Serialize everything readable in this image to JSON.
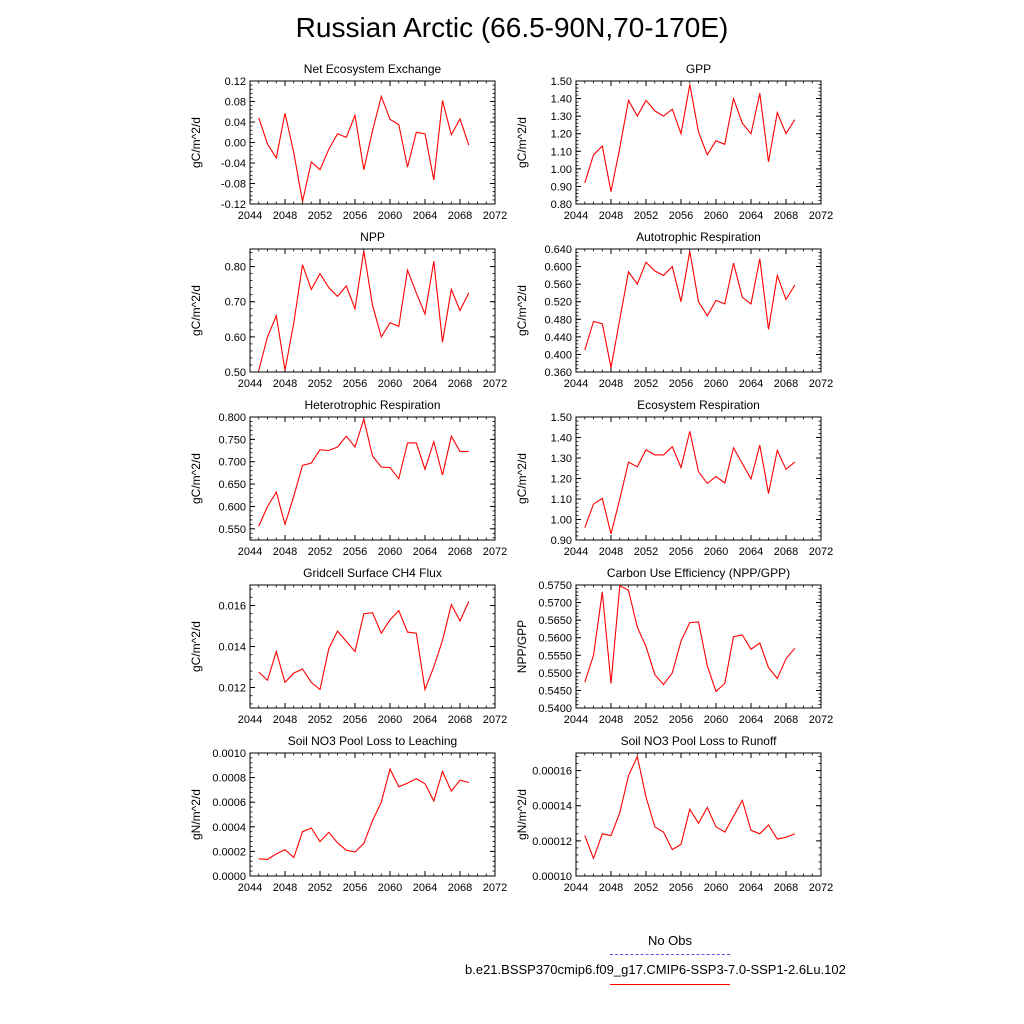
{
  "title": "Russian Arctic (66.5-90N,70-170E)",
  "legend": {
    "obs_label": "No Obs",
    "obs_color": "#5555ee",
    "model_label": "b.e21.BSSP370cmip6.f09_g17.CMIP6-SSP3-7.0-SSP1-2.6Lu.102",
    "model_color": "#ff0000"
  },
  "chart_data": [
    {
      "type": "line",
      "title": "Net Ecosystem Exchange",
      "ylabel": "gC/m^2/d",
      "xlim": [
        2044,
        2072
      ],
      "xticks": [
        2044,
        2048,
        2052,
        2056,
        2060,
        2064,
        2068,
        2072
      ],
      "xtick_labels": [
        "2044",
        "2048",
        "2052",
        "2056",
        "2060",
        "2064",
        "2068",
        "2072"
      ],
      "ylim": [
        -0.12,
        0.12
      ],
      "yticks": [
        -0.12,
        -0.08,
        -0.04,
        0.0,
        0.04,
        0.08,
        0.12
      ],
      "ytick_labels": [
        "-0.12",
        "-0.08",
        "-0.04",
        "0.00",
        "0.04",
        "0.08",
        "0.12"
      ],
      "x": [
        2045,
        2046,
        2047,
        2048,
        2049,
        2050,
        2051,
        2052,
        2053,
        2054,
        2055,
        2056,
        2057,
        2058,
        2059,
        2060,
        2061,
        2062,
        2063,
        2064,
        2065,
        2066,
        2067,
        2068,
        2069
      ],
      "series": [
        {
          "values": [
            0.048,
            -0.003,
            -0.03,
            0.057,
            -0.02,
            -0.115,
            -0.038,
            -0.053,
            -0.013,
            0.017,
            0.01,
            0.053,
            -0.053,
            0.023,
            0.09,
            0.045,
            0.035,
            -0.048,
            0.02,
            0.017,
            -0.073,
            0.082,
            0.015,
            0.046,
            -0.005
          ],
          "color": "#ff0000"
        }
      ]
    },
    {
      "type": "line",
      "title": "GPP",
      "ylabel": "gC/m^2/d",
      "xlim": [
        2044,
        2072
      ],
      "xticks": [
        2044,
        2048,
        2052,
        2056,
        2060,
        2064,
        2068,
        2072
      ],
      "xtick_labels": [
        "2044",
        "2048",
        "2052",
        "2056",
        "2060",
        "2064",
        "2068",
        "2072"
      ],
      "ylim": [
        0.8,
        1.5
      ],
      "yticks": [
        0.8,
        0.9,
        1.0,
        1.1,
        1.2,
        1.3,
        1.4,
        1.5
      ],
      "ytick_labels": [
        "0.80",
        "0.90",
        "1.00",
        "1.10",
        "1.20",
        "1.30",
        "1.40",
        "1.50"
      ],
      "x": [
        2045,
        2046,
        2047,
        2048,
        2049,
        2050,
        2051,
        2052,
        2053,
        2054,
        2055,
        2056,
        2057,
        2058,
        2059,
        2060,
        2061,
        2062,
        2063,
        2064,
        2065,
        2066,
        2067,
        2068,
        2069
      ],
      "series": [
        {
          "values": [
            0.92,
            1.08,
            1.13,
            0.87,
            1.12,
            1.39,
            1.3,
            1.39,
            1.33,
            1.3,
            1.34,
            1.2,
            1.48,
            1.21,
            1.08,
            1.16,
            1.14,
            1.4,
            1.26,
            1.2,
            1.43,
            1.04,
            1.32,
            1.2,
            1.28
          ],
          "color": "#ff0000"
        }
      ]
    },
    {
      "type": "line",
      "title": "NPP",
      "ylabel": "gC/m^2/d",
      "xlim": [
        2044,
        2072
      ],
      "xticks": [
        2044,
        2048,
        2052,
        2056,
        2060,
        2064,
        2068,
        2072
      ],
      "xtick_labels": [
        "2044",
        "2048",
        "2052",
        "2056",
        "2060",
        "2064",
        "2068",
        "2072"
      ],
      "ylim": [
        0.5,
        0.85
      ],
      "yticks": [
        0.5,
        0.6,
        0.7,
        0.8
      ],
      "ytick_labels": [
        "0.50",
        "0.60",
        "0.70",
        "0.80"
      ],
      "x": [
        2045,
        2046,
        2047,
        2048,
        2049,
        2050,
        2051,
        2052,
        2053,
        2054,
        2055,
        2056,
        2057,
        2058,
        2059,
        2060,
        2061,
        2062,
        2063,
        2064,
        2065,
        2066,
        2067,
        2068,
        2069
      ],
      "series": [
        {
          "values": [
            0.505,
            0.6,
            0.66,
            0.505,
            0.64,
            0.805,
            0.735,
            0.78,
            0.74,
            0.715,
            0.745,
            0.68,
            0.845,
            0.69,
            0.6,
            0.64,
            0.63,
            0.79,
            0.725,
            0.665,
            0.815,
            0.585,
            0.735,
            0.675,
            0.725
          ],
          "color": "#ff0000"
        }
      ]
    },
    {
      "type": "line",
      "title": "Autotrophic Respiration",
      "ylabel": "gC/m^2/d",
      "xlim": [
        2044,
        2072
      ],
      "xticks": [
        2044,
        2048,
        2052,
        2056,
        2060,
        2064,
        2068,
        2072
      ],
      "xtick_labels": [
        "2044",
        "2048",
        "2052",
        "2056",
        "2060",
        "2064",
        "2068",
        "2072"
      ],
      "ylim": [
        0.36,
        0.64
      ],
      "yticks": [
        0.36,
        0.4,
        0.44,
        0.48,
        0.52,
        0.56,
        0.6,
        0.64
      ],
      "ytick_labels": [
        "0.360",
        "0.400",
        "0.440",
        "0.480",
        "0.520",
        "0.560",
        "0.600",
        "0.640"
      ],
      "x": [
        2045,
        2046,
        2047,
        2048,
        2049,
        2050,
        2051,
        2052,
        2053,
        2054,
        2055,
        2056,
        2057,
        2058,
        2059,
        2060,
        2061,
        2062,
        2063,
        2064,
        2065,
        2066,
        2067,
        2068,
        2069
      ],
      "series": [
        {
          "values": [
            0.41,
            0.475,
            0.47,
            0.37,
            0.48,
            0.588,
            0.56,
            0.61,
            0.59,
            0.58,
            0.6,
            0.52,
            0.635,
            0.52,
            0.488,
            0.523,
            0.515,
            0.608,
            0.53,
            0.515,
            0.618,
            0.457,
            0.58,
            0.525,
            0.558
          ],
          "color": "#ff0000"
        }
      ]
    },
    {
      "type": "line",
      "title": "Heterotrophic Respiration",
      "ylabel": "gC/m^2/d",
      "xlim": [
        2044,
        2072
      ],
      "xticks": [
        2044,
        2048,
        2052,
        2056,
        2060,
        2064,
        2068,
        2072
      ],
      "xtick_labels": [
        "2044",
        "2048",
        "2052",
        "2056",
        "2060",
        "2064",
        "2068",
        "2072"
      ],
      "ylim": [
        0.525,
        0.8
      ],
      "yticks": [
        0.55,
        0.6,
        0.65,
        0.7,
        0.75,
        0.8
      ],
      "ytick_labels": [
        "0.550",
        "0.600",
        "0.650",
        "0.700",
        "0.750",
        "0.800"
      ],
      "x": [
        2045,
        2046,
        2047,
        2048,
        2049,
        2050,
        2051,
        2052,
        2053,
        2054,
        2055,
        2056,
        2057,
        2058,
        2059,
        2060,
        2061,
        2062,
        2063,
        2064,
        2065,
        2066,
        2067,
        2068,
        2069
      ],
      "series": [
        {
          "values": [
            0.556,
            0.6,
            0.632,
            0.56,
            0.623,
            0.692,
            0.697,
            0.727,
            0.725,
            0.733,
            0.757,
            0.733,
            0.795,
            0.713,
            0.688,
            0.687,
            0.662,
            0.742,
            0.742,
            0.683,
            0.745,
            0.67,
            0.757,
            0.723,
            0.723
          ],
          "color": "#ff0000"
        }
      ]
    },
    {
      "type": "line",
      "title": "Ecosystem Respiration",
      "ylabel": "gC/m^2/d",
      "xlim": [
        2044,
        2072
      ],
      "xticks": [
        2044,
        2048,
        2052,
        2056,
        2060,
        2064,
        2068,
        2072
      ],
      "xtick_labels": [
        "2044",
        "2048",
        "2052",
        "2056",
        "2060",
        "2064",
        "2068",
        "2072"
      ],
      "ylim": [
        0.9,
        1.5
      ],
      "yticks": [
        0.9,
        1.0,
        1.1,
        1.2,
        1.3,
        1.4,
        1.5
      ],
      "ytick_labels": [
        "0.90",
        "1.00",
        "1.10",
        "1.20",
        "1.30",
        "1.40",
        "1.50"
      ],
      "x": [
        2045,
        2046,
        2047,
        2048,
        2049,
        2050,
        2051,
        2052,
        2053,
        2054,
        2055,
        2056,
        2057,
        2058,
        2059,
        2060,
        2061,
        2062,
        2063,
        2064,
        2065,
        2066,
        2067,
        2068,
        2069
      ],
      "series": [
        {
          "values": [
            0.96,
            1.075,
            1.103,
            0.93,
            1.1,
            1.28,
            1.257,
            1.34,
            1.315,
            1.315,
            1.355,
            1.253,
            1.43,
            1.233,
            1.176,
            1.21,
            1.178,
            1.35,
            1.273,
            1.198,
            1.363,
            1.127,
            1.337,
            1.245,
            1.28
          ],
          "color": "#ff0000"
        }
      ]
    },
    {
      "type": "line",
      "title": "Gridcell Surface CH4 Flux",
      "ylabel": "gC/m^2/d",
      "xlim": [
        2044,
        2072
      ],
      "xticks": [
        2044,
        2048,
        2052,
        2056,
        2060,
        2064,
        2068,
        2072
      ],
      "xtick_labels": [
        "2044",
        "2048",
        "2052",
        "2056",
        "2060",
        "2064",
        "2068",
        "2072"
      ],
      "ylim": [
        0.011,
        0.017
      ],
      "yticks": [
        0.012,
        0.014,
        0.016
      ],
      "ytick_labels": [
        "0.012",
        "0.014",
        "0.016"
      ],
      "x": [
        2045,
        2046,
        2047,
        2048,
        2049,
        2050,
        2051,
        2052,
        2053,
        2054,
        2055,
        2056,
        2057,
        2058,
        2059,
        2060,
        2061,
        2062,
        2063,
        2064,
        2065,
        2066,
        2067,
        2068,
        2069
      ],
      "series": [
        {
          "values": [
            0.01275,
            0.01235,
            0.01375,
            0.01225,
            0.0127,
            0.0129,
            0.01225,
            0.0119,
            0.0139,
            0.01475,
            0.01425,
            0.01375,
            0.0156,
            0.01565,
            0.01465,
            0.0153,
            0.01575,
            0.0147,
            0.01465,
            0.0119,
            0.013,
            0.0143,
            0.01605,
            0.01525,
            0.0162
          ],
          "color": "#ff0000"
        }
      ]
    },
    {
      "type": "line",
      "title": "Carbon Use Efficiency (NPP/GPP)",
      "ylabel": "NPP/GPP",
      "xlim": [
        2044,
        2072
      ],
      "xticks": [
        2044,
        2048,
        2052,
        2056,
        2060,
        2064,
        2068,
        2072
      ],
      "xtick_labels": [
        "2044",
        "2048",
        "2052",
        "2056",
        "2060",
        "2064",
        "2068",
        "2072"
      ],
      "ylim": [
        0.54,
        0.575
      ],
      "yticks": [
        0.54,
        0.545,
        0.55,
        0.555,
        0.56,
        0.565,
        0.57,
        0.575
      ],
      "ytick_labels": [
        "0.5400",
        "0.5450",
        "0.5500",
        "0.5550",
        "0.5600",
        "0.5650",
        "0.5700",
        "0.5750"
      ],
      "x": [
        2045,
        2046,
        2047,
        2048,
        2049,
        2050,
        2051,
        2052,
        2053,
        2054,
        2055,
        2056,
        2057,
        2058,
        2059,
        2060,
        2061,
        2062,
        2063,
        2064,
        2065,
        2066,
        2067,
        2068,
        2069
      ],
      "series": [
        {
          "values": [
            0.5473,
            0.555,
            0.573,
            0.547,
            0.5748,
            0.5735,
            0.563,
            0.5575,
            0.5495,
            0.5467,
            0.55,
            0.559,
            0.5643,
            0.5645,
            0.552,
            0.5447,
            0.547,
            0.5603,
            0.5608,
            0.5567,
            0.5585,
            0.5515,
            0.5484,
            0.554,
            0.557
          ],
          "color": "#ff0000"
        }
      ]
    },
    {
      "type": "line",
      "title": "Soil NO3 Pool Loss to Leaching",
      "ylabel": "gN/m^2/d",
      "xlim": [
        2044,
        2072
      ],
      "xticks": [
        2044,
        2048,
        2052,
        2056,
        2060,
        2064,
        2068,
        2072
      ],
      "xtick_labels": [
        "2044",
        "2048",
        "2052",
        "2056",
        "2060",
        "2064",
        "2068",
        "2072"
      ],
      "ylim": [
        0.0,
        0.001
      ],
      "yticks": [
        0.0,
        0.0002,
        0.0004,
        0.0006,
        0.0008,
        0.001
      ],
      "ytick_labels": [
        "0.0000",
        "0.0002",
        "0.0004",
        "0.0006",
        "0.0008",
        "0.0010"
      ],
      "x": [
        2045,
        2046,
        2047,
        2048,
        2049,
        2050,
        2051,
        2052,
        2053,
        2054,
        2055,
        2056,
        2057,
        2058,
        2059,
        2060,
        2061,
        2062,
        2063,
        2064,
        2065,
        2066,
        2067,
        2068,
        2069
      ],
      "series": [
        {
          "values": [
            0.00014,
            0.000135,
            0.00018,
            0.000215,
            0.00015,
            0.00036,
            0.00039,
            0.00028,
            0.000355,
            0.00027,
            0.00021,
            0.000195,
            0.000265,
            0.00045,
            0.0006,
            0.00087,
            0.000725,
            0.000755,
            0.00079,
            0.00075,
            0.00061,
            0.00085,
            0.00069,
            0.00078,
            0.00076
          ],
          "color": "#ff0000"
        }
      ]
    },
    {
      "type": "line",
      "title": "Soil NO3 Pool Loss to Runoff",
      "ylabel": "gN/m^2/d",
      "xlim": [
        2044,
        2072
      ],
      "xticks": [
        2044,
        2048,
        2052,
        2056,
        2060,
        2064,
        2068,
        2072
      ],
      "xtick_labels": [
        "2044",
        "2048",
        "2052",
        "2056",
        "2060",
        "2064",
        "2068",
        "2072"
      ],
      "ylim": [
        0.0001,
        0.00017
      ],
      "yticks": [
        0.0001,
        0.00012,
        0.00014,
        0.00016
      ],
      "ytick_labels": [
        "0.00010",
        "0.00012",
        "0.00014",
        "0.00016"
      ],
      "x": [
        2045,
        2046,
        2047,
        2048,
        2049,
        2050,
        2051,
        2052,
        2053,
        2054,
        2055,
        2056,
        2057,
        2058,
        2059,
        2060,
        2061,
        2062,
        2063,
        2064,
        2065,
        2066,
        2067,
        2068,
        2069
      ],
      "series": [
        {
          "values": [
            0.000123,
            0.00011,
            0.000124,
            0.000123,
            0.000136,
            0.000157,
            0.000168,
            0.000145,
            0.000128,
            0.000125,
            0.000115,
            0.000118,
            0.000138,
            0.00013,
            0.000139,
            0.000128,
            0.000125,
            0.000134,
            0.000143,
            0.000126,
            0.000124,
            0.000129,
            0.000121,
            0.000122,
            0.000124
          ],
          "color": "#ff0000"
        }
      ]
    }
  ]
}
